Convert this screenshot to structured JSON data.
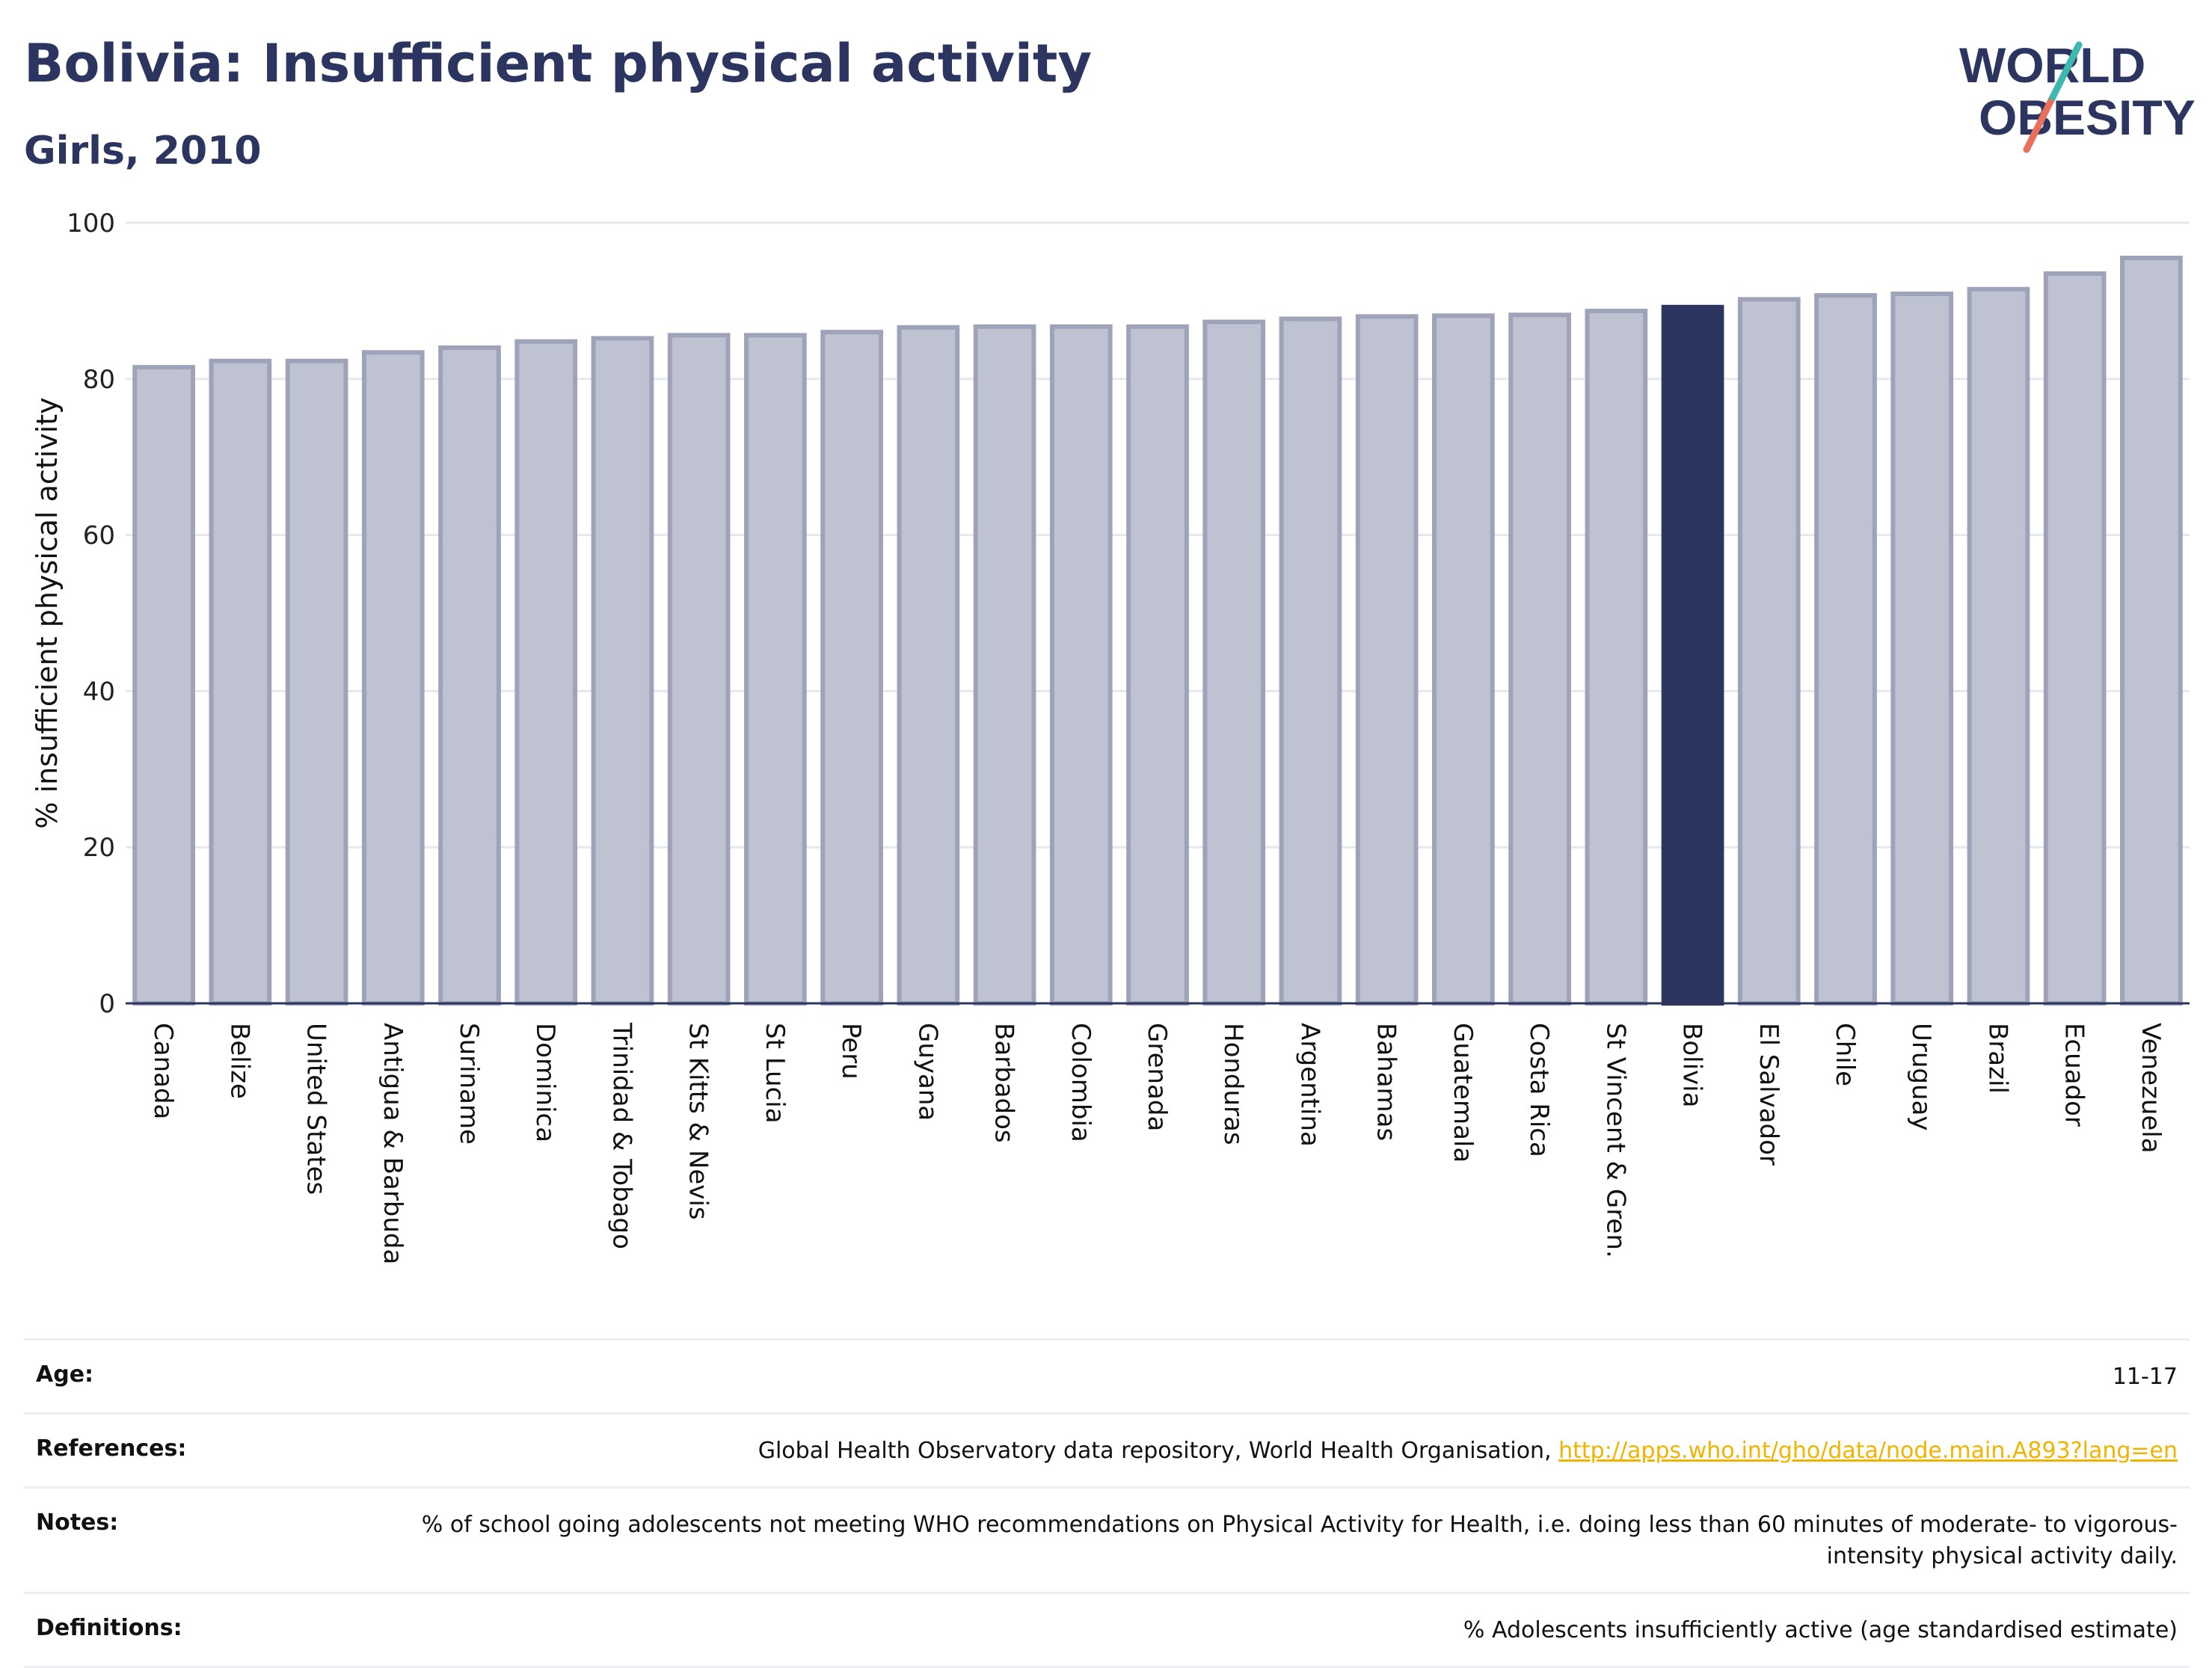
{
  "header": {
    "title": "Bolivia: Insufficient physical activity",
    "subtitle": "Girls, 2010"
  },
  "logo": {
    "line1": "WORLD",
    "line2": "OBESITY"
  },
  "colors": {
    "bar_fill": "#bfc2d0",
    "bar_stroke": "#9ea3ba",
    "highlight": "#2b3560",
    "title": "#2b3560",
    "link": "#f0b400",
    "logo_teal": "#3cb8b0",
    "logo_coral": "#e8705c"
  },
  "chart_data": {
    "type": "bar",
    "title": "Bolivia: Insufficient physical activity",
    "subtitle": "Girls, 2010",
    "xlabel": "",
    "ylabel": "% insufficient physical activity",
    "ylim": [
      0,
      100
    ],
    "yticks": [
      0,
      20,
      40,
      60,
      80,
      100
    ],
    "grid": true,
    "highlight": "Bolivia",
    "categories": [
      "Canada",
      "Belize",
      "United States",
      "Antigua & Barbuda",
      "Suriname",
      "Dominica",
      "Trinidad & Tobago",
      "St Kitts & Nevis",
      "St Lucia",
      "Peru",
      "Guyana",
      "Barbados",
      "Colombia",
      "Grenada",
      "Honduras",
      "Argentina",
      "Bahamas",
      "Guatemala",
      "Costa Rica",
      "St Vincent & Gren.",
      "Bolivia",
      "El Salvador",
      "Chile",
      "Uruguay",
      "Brazil",
      "Ecuador",
      "Venezuela"
    ],
    "values": [
      81.5,
      82.3,
      82.3,
      83.4,
      84.0,
      84.8,
      85.2,
      85.6,
      85.6,
      86.0,
      86.6,
      86.7,
      86.7,
      86.7,
      87.3,
      87.7,
      88.0,
      88.1,
      88.2,
      88.7,
      89.2,
      90.2,
      90.7,
      90.9,
      91.5,
      93.5,
      95.5
    ]
  },
  "info": {
    "age_label": "Age:",
    "age_value": "11-17",
    "references_label": "References:",
    "references_text": "Global Health Observatory data repository, World Health Organisation, ",
    "references_link": "http://apps.who.int/gho/data/node.main.A893?lang=en",
    "notes_label": "Notes:",
    "notes_value": "% of school going adolescents not meeting WHO recommendations on Physical Activity for Health, i.e. doing less than 60 minutes of moderate- to vigorous-intensity physical activity daily.",
    "definitions_label": "Definitions:",
    "definitions_value": "% Adolescents insufficiently active (age standardised estimate)"
  }
}
